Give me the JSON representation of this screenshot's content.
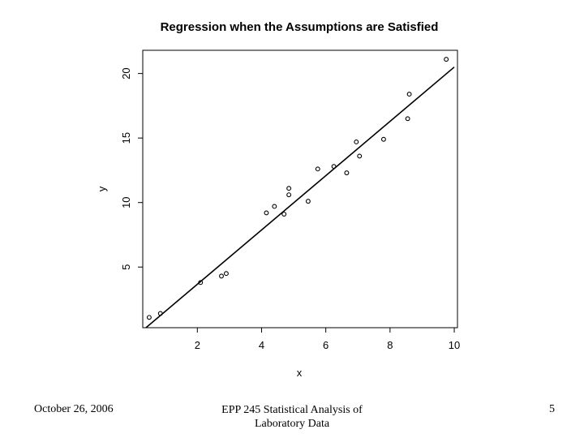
{
  "chart_data": {
    "type": "scatter",
    "title": "Regression when the Assumptions are Satisfied",
    "xlabel": "x",
    "ylabel": "y",
    "xlim": [
      0.3,
      10.1
    ],
    "ylim": [
      0.3,
      21.8
    ],
    "x_ticks": [
      2,
      4,
      6,
      8,
      10
    ],
    "y_ticks": [
      5,
      10,
      15,
      20
    ],
    "x_tick_labels": [
      "2",
      "4",
      "6",
      "8",
      "10"
    ],
    "y_tick_labels": [
      "5",
      "10",
      "15",
      "20"
    ],
    "grid": false,
    "points": [
      {
        "x": 0.5,
        "y": 1.1
      },
      {
        "x": 0.85,
        "y": 1.4
      },
      {
        "x": 2.1,
        "y": 3.8
      },
      {
        "x": 2.75,
        "y": 4.3
      },
      {
        "x": 2.9,
        "y": 4.5
      },
      {
        "x": 4.15,
        "y": 9.2
      },
      {
        "x": 4.4,
        "y": 9.7
      },
      {
        "x": 4.7,
        "y": 9.1
      },
      {
        "x": 4.85,
        "y": 10.6
      },
      {
        "x": 4.85,
        "y": 11.1
      },
      {
        "x": 5.45,
        "y": 10.1
      },
      {
        "x": 5.75,
        "y": 12.6
      },
      {
        "x": 6.25,
        "y": 12.8
      },
      {
        "x": 6.65,
        "y": 12.3
      },
      {
        "x": 6.95,
        "y": 14.7
      },
      {
        "x": 7.05,
        "y": 13.6
      },
      {
        "x": 7.8,
        "y": 14.9
      },
      {
        "x": 8.55,
        "y": 16.5
      },
      {
        "x": 8.6,
        "y": 18.4
      },
      {
        "x": 9.75,
        "y": 21.1
      }
    ],
    "fit_line": {
      "x": [
        0.4,
        10.0
      ],
      "y": [
        0.3,
        20.5
      ]
    }
  },
  "footer": {
    "date": "October 26, 2006",
    "course_line1": "EPP 245 Statistical Analysis of",
    "course_line2": "Laboratory Data",
    "page_number": "5"
  }
}
